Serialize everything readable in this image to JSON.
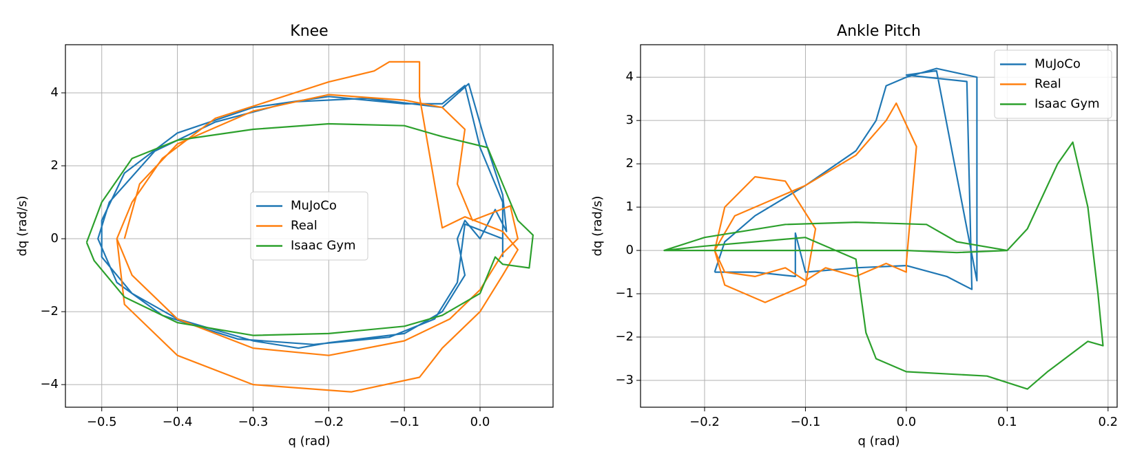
{
  "chart_data": [
    {
      "type": "line",
      "title": "Knee",
      "xlabel": "q (rad)",
      "ylabel": "dq (rad/s)",
      "xlim": [
        -0.548,
        0.0965
      ],
      "ylim": [
        -4.62,
        5.32
      ],
      "xticks": [
        {
          "value": -0.5,
          "label": "−0.5"
        },
        {
          "value": -0.4,
          "label": "−0.4"
        },
        {
          "value": -0.3,
          "label": "−0.3"
        },
        {
          "value": -0.2,
          "label": "−0.2"
        },
        {
          "value": -0.1,
          "label": "−0.1"
        },
        {
          "value": 0,
          "label": "0.0"
        }
      ],
      "yticks": [
        {
          "value": -4,
          "label": "−4"
        },
        {
          "value": -2,
          "label": "−2"
        },
        0,
        2,
        4
      ],
      "grid": true,
      "legend": "center",
      "series": [
        {
          "name": "MuJoCo",
          "color": "#1f77b4",
          "x": [
            0.03,
            0.03,
            0.0,
            -0.02,
            -0.05,
            -0.1,
            -0.2,
            -0.3,
            -0.4,
            -0.47,
            -0.5,
            -0.5,
            -0.46,
            -0.4,
            -0.3,
            -0.24,
            -0.2,
            -0.1,
            -0.05,
            -0.02,
            -0.03,
            -0.02,
            0.0,
            0.02,
            0.035,
            0.03,
            0.005,
            -0.015,
            -0.05,
            -0.15,
            -0.25,
            -0.35,
            -0.43,
            -0.49,
            -0.505,
            -0.48,
            -0.42,
            -0.32,
            -0.22,
            -0.12,
            -0.06,
            -0.03,
            -0.02,
            0.03
          ],
          "values": [
            -0.5,
            1.0,
            2.5,
            4.2,
            3.7,
            3.7,
            3.9,
            3.6,
            2.9,
            1.8,
            0.5,
            -0.5,
            -1.5,
            -2.2,
            -2.8,
            -3.0,
            -2.85,
            -2.6,
            -2.0,
            -1.0,
            0.0,
            0.5,
            0.0,
            0.8,
            0.2,
            1.2,
            2.8,
            4.25,
            3.6,
            3.85,
            3.75,
            3.2,
            2.4,
            1.0,
            0.0,
            -1.2,
            -2.1,
            -2.75,
            -2.9,
            -2.7,
            -2.2,
            -1.2,
            0.4,
            0.0
          ]
        },
        {
          "name": "Real",
          "color": "#ff7f0e",
          "x": [
            -0.47,
            -0.45,
            -0.4,
            -0.3,
            -0.2,
            -0.1,
            -0.05,
            -0.02,
            -0.03,
            -0.01,
            0.04,
            0.05,
            0.03,
            0.0,
            -0.04,
            -0.1,
            -0.2,
            -0.3,
            -0.4,
            -0.46,
            -0.48,
            -0.46,
            -0.42,
            -0.35,
            -0.2,
            -0.14,
            -0.12,
            -0.08,
            -0.08,
            -0.05,
            -0.02,
            0.03,
            0.05,
            0.03,
            0.0,
            -0.05,
            -0.08,
            -0.17,
            -0.3,
            -0.4,
            -0.47,
            -0.48
          ],
          "values": [
            0,
            1.5,
            2.6,
            3.5,
            3.95,
            3.8,
            3.6,
            3.0,
            1.5,
            0.5,
            0.9,
            0.0,
            -0.4,
            -1.4,
            -2.2,
            -2.8,
            -3.2,
            -3.0,
            -2.2,
            -1.0,
            0,
            1.0,
            2.2,
            3.3,
            4.3,
            4.6,
            4.85,
            4.85,
            3.9,
            0.3,
            0.6,
            0.2,
            -0.3,
            -1.0,
            -2.0,
            -3.0,
            -3.8,
            -4.2,
            -4.0,
            -3.2,
            -1.8,
            0
          ]
        },
        {
          "name": "Isaac Gym",
          "color": "#2ca02c",
          "x": [
            -0.52,
            -0.5,
            -0.46,
            -0.4,
            -0.3,
            -0.2,
            -0.1,
            -0.05,
            0.01,
            0.03,
            0.05,
            0.07,
            0.065,
            0.03,
            0.02,
            0.0,
            -0.05,
            -0.1,
            -0.2,
            -0.3,
            -0.4,
            -0.47,
            -0.51,
            -0.52
          ],
          "values": [
            -0.1,
            1.0,
            2.2,
            2.7,
            3.0,
            3.15,
            3.1,
            2.8,
            2.5,
            1.5,
            0.5,
            0.1,
            -0.8,
            -0.7,
            -0.5,
            -1.5,
            -2.1,
            -2.4,
            -2.6,
            -2.65,
            -2.3,
            -1.6,
            -0.6,
            -0.1
          ]
        }
      ]
    },
    {
      "type": "line",
      "title": "Ankle Pitch",
      "xlabel": "q (rad)",
      "ylabel": "dq (rad/s)",
      "xlim": [
        -0.2635,
        0.209
      ],
      "ylim": [
        -3.62,
        4.75
      ],
      "xticks": [
        {
          "value": -0.2,
          "label": "−0.2"
        },
        {
          "value": -0.1,
          "label": "−0.1"
        },
        {
          "value": 0,
          "label": "0.0"
        },
        0.1,
        0.2
      ],
      "yticks": [
        {
          "value": -3,
          "label": "−3"
        },
        {
          "value": -2,
          "label": "−2"
        },
        {
          "value": -1,
          "label": "−1"
        },
        0,
        1,
        2,
        3,
        4
      ],
      "grid": true,
      "legend": "upper right",
      "series": [
        {
          "name": "MuJoCo",
          "color": "#1f77b4",
          "x": [
            -0.19,
            -0.18,
            -0.15,
            -0.1,
            -0.05,
            -0.03,
            -0.02,
            0.0,
            0.03,
            0.07,
            0.07,
            0.03,
            0.0,
            0.06,
            0.065,
            0.04,
            0.0,
            -0.05,
            -0.1,
            -0.11,
            -0.11,
            -0.15,
            -0.19
          ],
          "values": [
            -0.5,
            0.2,
            0.8,
            1.5,
            2.3,
            3.0,
            3.8,
            4.0,
            4.2,
            4.0,
            -0.7,
            4.15,
            4.05,
            3.9,
            -0.9,
            -0.6,
            -0.35,
            -0.4,
            -0.5,
            0.4,
            -0.6,
            -0.5,
            -0.5
          ]
        },
        {
          "name": "Real",
          "color": "#ff7f0e",
          "x": [
            -0.19,
            -0.18,
            -0.15,
            -0.12,
            -0.09,
            -0.1,
            -0.14,
            -0.18,
            -0.19,
            -0.17,
            -0.1,
            -0.05,
            -0.02,
            -0.01,
            0.01,
            0.0,
            0.0,
            -0.02,
            -0.05,
            -0.08,
            -0.1,
            -0.12,
            -0.15,
            -0.18,
            -0.19
          ],
          "values": [
            0,
            1.0,
            1.7,
            1.6,
            0.5,
            -0.8,
            -1.2,
            -0.8,
            0,
            0.8,
            1.5,
            2.2,
            3.0,
            3.4,
            2.4,
            -0.3,
            -0.5,
            -0.3,
            -0.6,
            -0.4,
            -0.7,
            -0.4,
            -0.6,
            -0.5,
            0
          ]
        },
        {
          "name": "Isaac Gym",
          "color": "#2ca02c",
          "x": [
            -0.24,
            -0.2,
            -0.1,
            -0.05,
            0.0,
            0.05,
            0.1,
            0.12,
            0.15,
            0.165,
            0.18,
            0.19,
            0.195,
            0.18,
            0.14,
            0.12,
            0.08,
            0.0,
            -0.03,
            -0.04,
            -0.05,
            -0.1,
            -0.15,
            -0.2,
            -0.24,
            -0.2,
            -0.12,
            -0.05,
            0.02,
            0.05,
            0.1
          ],
          "values": [
            0.0,
            0.0,
            0.0,
            0.0,
            0.0,
            -0.05,
            0.0,
            0.5,
            2.0,
            2.5,
            1.0,
            -1.0,
            -2.2,
            -2.1,
            -2.8,
            -3.2,
            -2.9,
            -2.8,
            -2.5,
            -1.9,
            -0.2,
            0.3,
            0.2,
            0.1,
            0.0,
            0.3,
            0.6,
            0.65,
            0.6,
            0.2,
            0.0
          ]
        }
      ]
    }
  ]
}
